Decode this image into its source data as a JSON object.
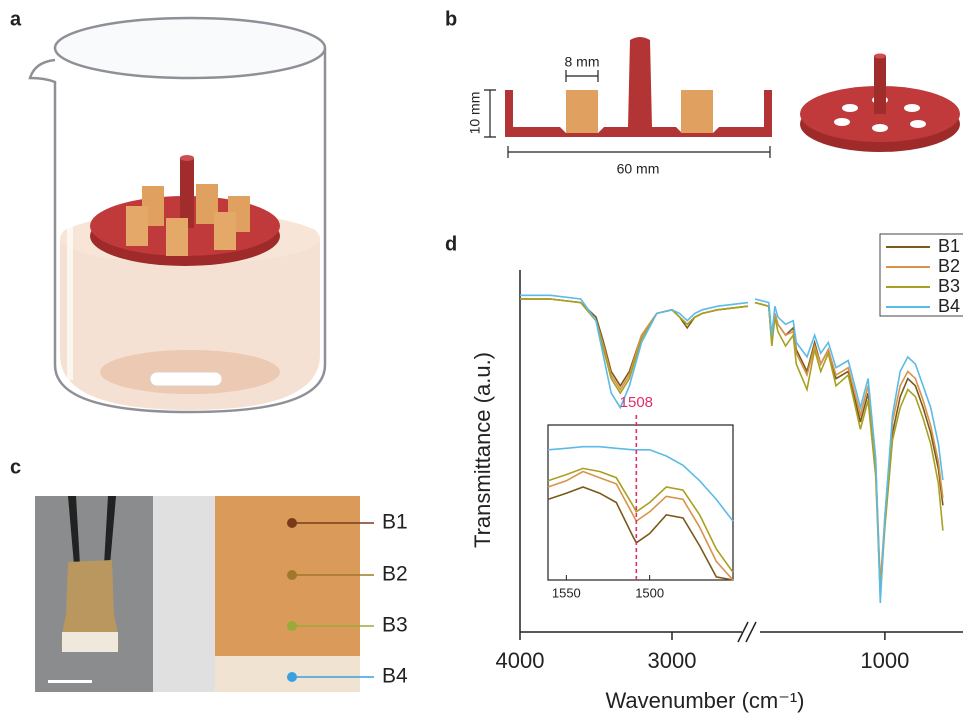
{
  "panels": {
    "a": {
      "label": "a"
    },
    "b": {
      "label": "b",
      "dimensions": [
        "8 mm",
        "10 mm",
        "60 mm"
      ]
    },
    "c": {
      "label": "c",
      "regions": [
        "B1",
        "B2",
        "B3",
        "B4"
      ]
    },
    "d": {
      "label": "d"
    }
  },
  "chart_data": [
    {
      "type": "line",
      "x_label": "Wavenumber (cm⁻¹)",
      "y_label": "Transmittance (a.u.)",
      "xlim": [
        4000,
        600
      ],
      "axis_break": [
        2500,
        1850
      ],
      "ylim": [
        0,
        1
      ],
      "xticks": [
        4000,
        3000,
        1000
      ],
      "x": [
        4000,
        3800,
        3600,
        3500,
        3450,
        3400,
        3340,
        3280,
        3200,
        3100,
        3000,
        2950,
        2900,
        2850,
        2800,
        2700,
        2500,
        2200,
        1850,
        1760,
        1740,
        1720,
        1700,
        1650,
        1600,
        1580,
        1510,
        1460,
        1420,
        1370,
        1320,
        1240,
        1160,
        1110,
        1060,
        1030,
        1000,
        950,
        900,
        850,
        800,
        750,
        700,
        650,
        620
      ],
      "legend": "upper right",
      "series": [
        {
          "name": "B1",
          "color": "#7a5a1a",
          "values": [
            0.92,
            0.92,
            0.91,
            0.87,
            0.8,
            0.72,
            0.68,
            0.72,
            0.82,
            0.88,
            0.89,
            0.87,
            0.84,
            0.87,
            0.88,
            0.89,
            0.9,
            null,
            0.91,
            0.9,
            0.8,
            0.88,
            0.85,
            0.82,
            0.84,
            0.78,
            0.72,
            0.8,
            0.74,
            0.78,
            0.7,
            0.72,
            0.58,
            0.66,
            0.45,
            0.12,
            0.3,
            0.55,
            0.65,
            0.7,
            0.68,
            0.62,
            0.55,
            0.45,
            0.35
          ]
        },
        {
          "name": "B2",
          "color": "#d9924a",
          "values": [
            0.92,
            0.92,
            0.91,
            0.86,
            0.79,
            0.71,
            0.67,
            0.71,
            0.82,
            0.88,
            0.89,
            0.87,
            0.85,
            0.87,
            0.88,
            0.89,
            0.9,
            null,
            0.91,
            0.9,
            0.81,
            0.88,
            0.85,
            0.82,
            0.83,
            0.77,
            0.71,
            0.79,
            0.74,
            0.78,
            0.71,
            0.73,
            0.6,
            0.68,
            0.47,
            0.13,
            0.32,
            0.58,
            0.68,
            0.72,
            0.7,
            0.64,
            0.57,
            0.47,
            0.37
          ]
        },
        {
          "name": "B3",
          "color": "#a8a020",
          "values": [
            0.92,
            0.92,
            0.91,
            0.86,
            0.78,
            0.7,
            0.66,
            0.7,
            0.81,
            0.88,
            0.89,
            0.87,
            0.85,
            0.87,
            0.88,
            0.89,
            0.9,
            null,
            0.91,
            0.9,
            0.79,
            0.87,
            0.83,
            0.79,
            0.82,
            0.74,
            0.67,
            0.78,
            0.72,
            0.77,
            0.68,
            0.71,
            0.56,
            0.64,
            0.43,
            0.1,
            0.29,
            0.53,
            0.62,
            0.67,
            0.65,
            0.59,
            0.52,
            0.41,
            0.28
          ]
        },
        {
          "name": "B4",
          "color": "#5bbbe8",
          "values": [
            0.93,
            0.93,
            0.92,
            0.86,
            0.76,
            0.66,
            0.62,
            0.68,
            0.8,
            0.88,
            0.89,
            0.88,
            0.86,
            0.88,
            0.89,
            0.9,
            0.91,
            null,
            0.92,
            0.91,
            0.82,
            0.9,
            0.87,
            0.85,
            0.86,
            0.8,
            0.76,
            0.82,
            0.77,
            0.8,
            0.73,
            0.75,
            0.62,
            0.7,
            0.48,
            0.08,
            0.32,
            0.6,
            0.72,
            0.76,
            0.74,
            0.68,
            0.62,
            0.52,
            0.42
          ]
        }
      ]
    },
    {
      "type": "line",
      "xlim": [
        1561,
        1450
      ],
      "ylim": [
        0,
        1
      ],
      "xticks": [
        1550,
        1500
      ],
      "marker_line": 1508,
      "x": [
        1561,
        1550,
        1540,
        1530,
        1520,
        1510,
        1508,
        1500,
        1490,
        1480,
        1470,
        1460,
        1450
      ],
      "series": [
        {
          "name": "B1",
          "color": "#7a5a1a",
          "values": [
            0.52,
            0.56,
            0.6,
            0.56,
            0.5,
            0.28,
            0.24,
            0.3,
            0.42,
            0.4,
            0.22,
            0.02,
            0.0
          ]
        },
        {
          "name": "B2",
          "color": "#d9924a",
          "values": [
            0.6,
            0.64,
            0.7,
            0.66,
            0.62,
            0.42,
            0.38,
            0.44,
            0.54,
            0.52,
            0.34,
            0.12,
            0.0
          ]
        },
        {
          "name": "B3",
          "color": "#a8a020",
          "values": [
            0.64,
            0.68,
            0.72,
            0.7,
            0.66,
            0.48,
            0.44,
            0.5,
            0.6,
            0.58,
            0.42,
            0.2,
            0.05
          ]
        },
        {
          "name": "B4",
          "color": "#5bbbe8",
          "values": [
            0.84,
            0.85,
            0.86,
            0.86,
            0.85,
            0.84,
            0.84,
            0.84,
            0.8,
            0.74,
            0.64,
            0.52,
            0.38
          ]
        }
      ]
    }
  ]
}
